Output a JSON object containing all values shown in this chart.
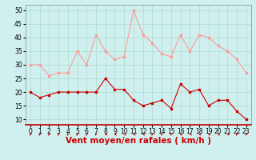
{
  "x": [
    0,
    1,
    2,
    3,
    4,
    5,
    6,
    7,
    8,
    9,
    10,
    11,
    12,
    13,
    14,
    15,
    16,
    17,
    18,
    19,
    20,
    21,
    22,
    23
  ],
  "wind_avg": [
    20,
    18,
    19,
    20,
    20,
    20,
    20,
    20,
    25,
    21,
    21,
    17,
    15,
    16,
    17,
    14,
    23,
    20,
    21,
    15,
    17,
    17,
    13,
    10
  ],
  "wind_gust": [
    30,
    30,
    26,
    27,
    27,
    35,
    30,
    41,
    35,
    32,
    33,
    50,
    41,
    38,
    34,
    33,
    41,
    35,
    41,
    40,
    37,
    35,
    32,
    27
  ],
  "wind_dir_angles": [
    225,
    225,
    225,
    225,
    225,
    225,
    225,
    225,
    270,
    270,
    270,
    270,
    270,
    225,
    225,
    225,
    270,
    270,
    270,
    270,
    270,
    270,
    225,
    225
  ],
  "line_color_avg": "#cc0000",
  "line_color_gust": "#ff9999",
  "bg_color": "#d0f0f0",
  "grid_color": "#aaddcc",
  "xlabel": "Vent moyen/en rafales ( km/h )",
  "xlim": [
    -0.5,
    23.5
  ],
  "ylim": [
    8,
    52
  ],
  "yticks": [
    10,
    15,
    20,
    25,
    30,
    35,
    40,
    45,
    50
  ],
  "xticks": [
    0,
    1,
    2,
    3,
    4,
    5,
    6,
    7,
    8,
    9,
    10,
    11,
    12,
    13,
    14,
    15,
    16,
    17,
    18,
    19,
    20,
    21,
    22,
    23
  ],
  "tick_fontsize": 5.5,
  "xlabel_fontsize": 7.5,
  "marker_size": 2.0,
  "line_width": 0.8
}
